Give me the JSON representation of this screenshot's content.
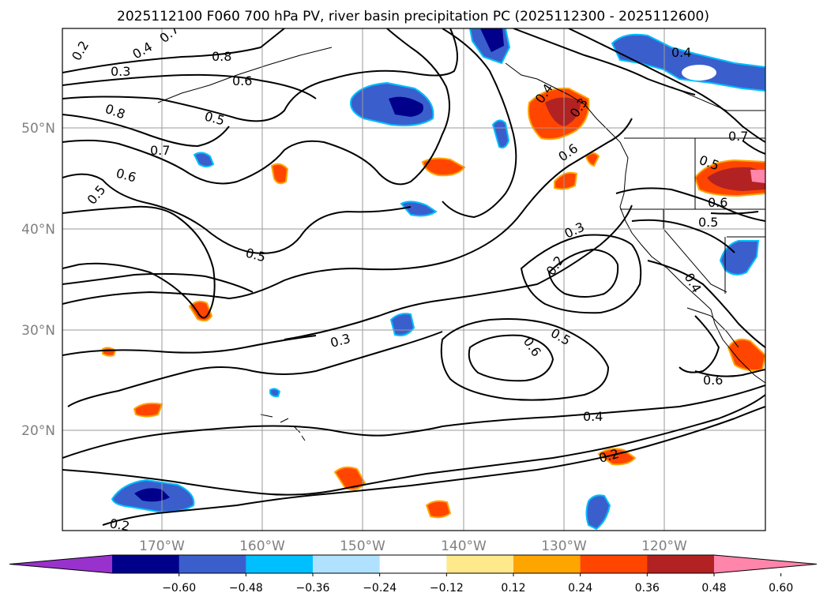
{
  "title": "2025112100 F060 700 hPa PV, river basin precipitation PC (2025112300 - 2025112600)",
  "lat_labels": [
    "50°N",
    "40°N",
    "30°N",
    "20°N"
  ],
  "lon_labels": [
    "170°W",
    "160°W",
    "150°W",
    "140°W",
    "130°W",
    "120°W"
  ],
  "contour_labels": [
    {
      "t": "0.2"
    },
    {
      "t": "0.4"
    },
    {
      "t": "0.7"
    },
    {
      "t": "0.3"
    },
    {
      "t": "0.8"
    },
    {
      "t": "0.6"
    },
    {
      "t": "0.8"
    },
    {
      "t": "0.5"
    },
    {
      "t": "0.7"
    },
    {
      "t": "0.6"
    },
    {
      "t": "0.5"
    },
    {
      "t": "0.5"
    },
    {
      "t": "0.3"
    },
    {
      "t": "0.6"
    },
    {
      "t": "0.5"
    },
    {
      "t": "0.6"
    },
    {
      "t": "0.3"
    },
    {
      "t": "0.2"
    },
    {
      "t": "0.4"
    },
    {
      "t": "0.3"
    },
    {
      "t": "0.4"
    },
    {
      "t": "0.2"
    },
    {
      "t": "0.2"
    },
    {
      "t": "0.7"
    },
    {
      "t": "0.5"
    },
    {
      "t": "0.6"
    },
    {
      "t": "0.5"
    },
    {
      "t": "0.4"
    },
    {
      "t": "0.6"
    },
    {
      "t": "0.4"
    }
  ],
  "colorbar": {
    "colors": [
      "#9932cc",
      "#00008b",
      "#3a5fcd",
      "#00bfff",
      "#b0e2ff",
      "#ffffff",
      "#ffe98a",
      "#ffa500",
      "#ff4500",
      "#b22222",
      "#ff85aa"
    ],
    "tick_labels": [
      "−0.60",
      "−0.48",
      "−0.36",
      "−0.24",
      "−0.12",
      "0.12",
      "0.24",
      "0.36",
      "0.48",
      "0.60"
    ]
  },
  "legend_colors": {
    "neg_dark": "#00008b",
    "neg_mid": "#3a5fcd",
    "neg_light": "#00bfff",
    "pos_light": "#ffa500",
    "pos_mid": "#ff4500",
    "pos_dark": "#b22222",
    "pos_max": "#ff85aa"
  }
}
